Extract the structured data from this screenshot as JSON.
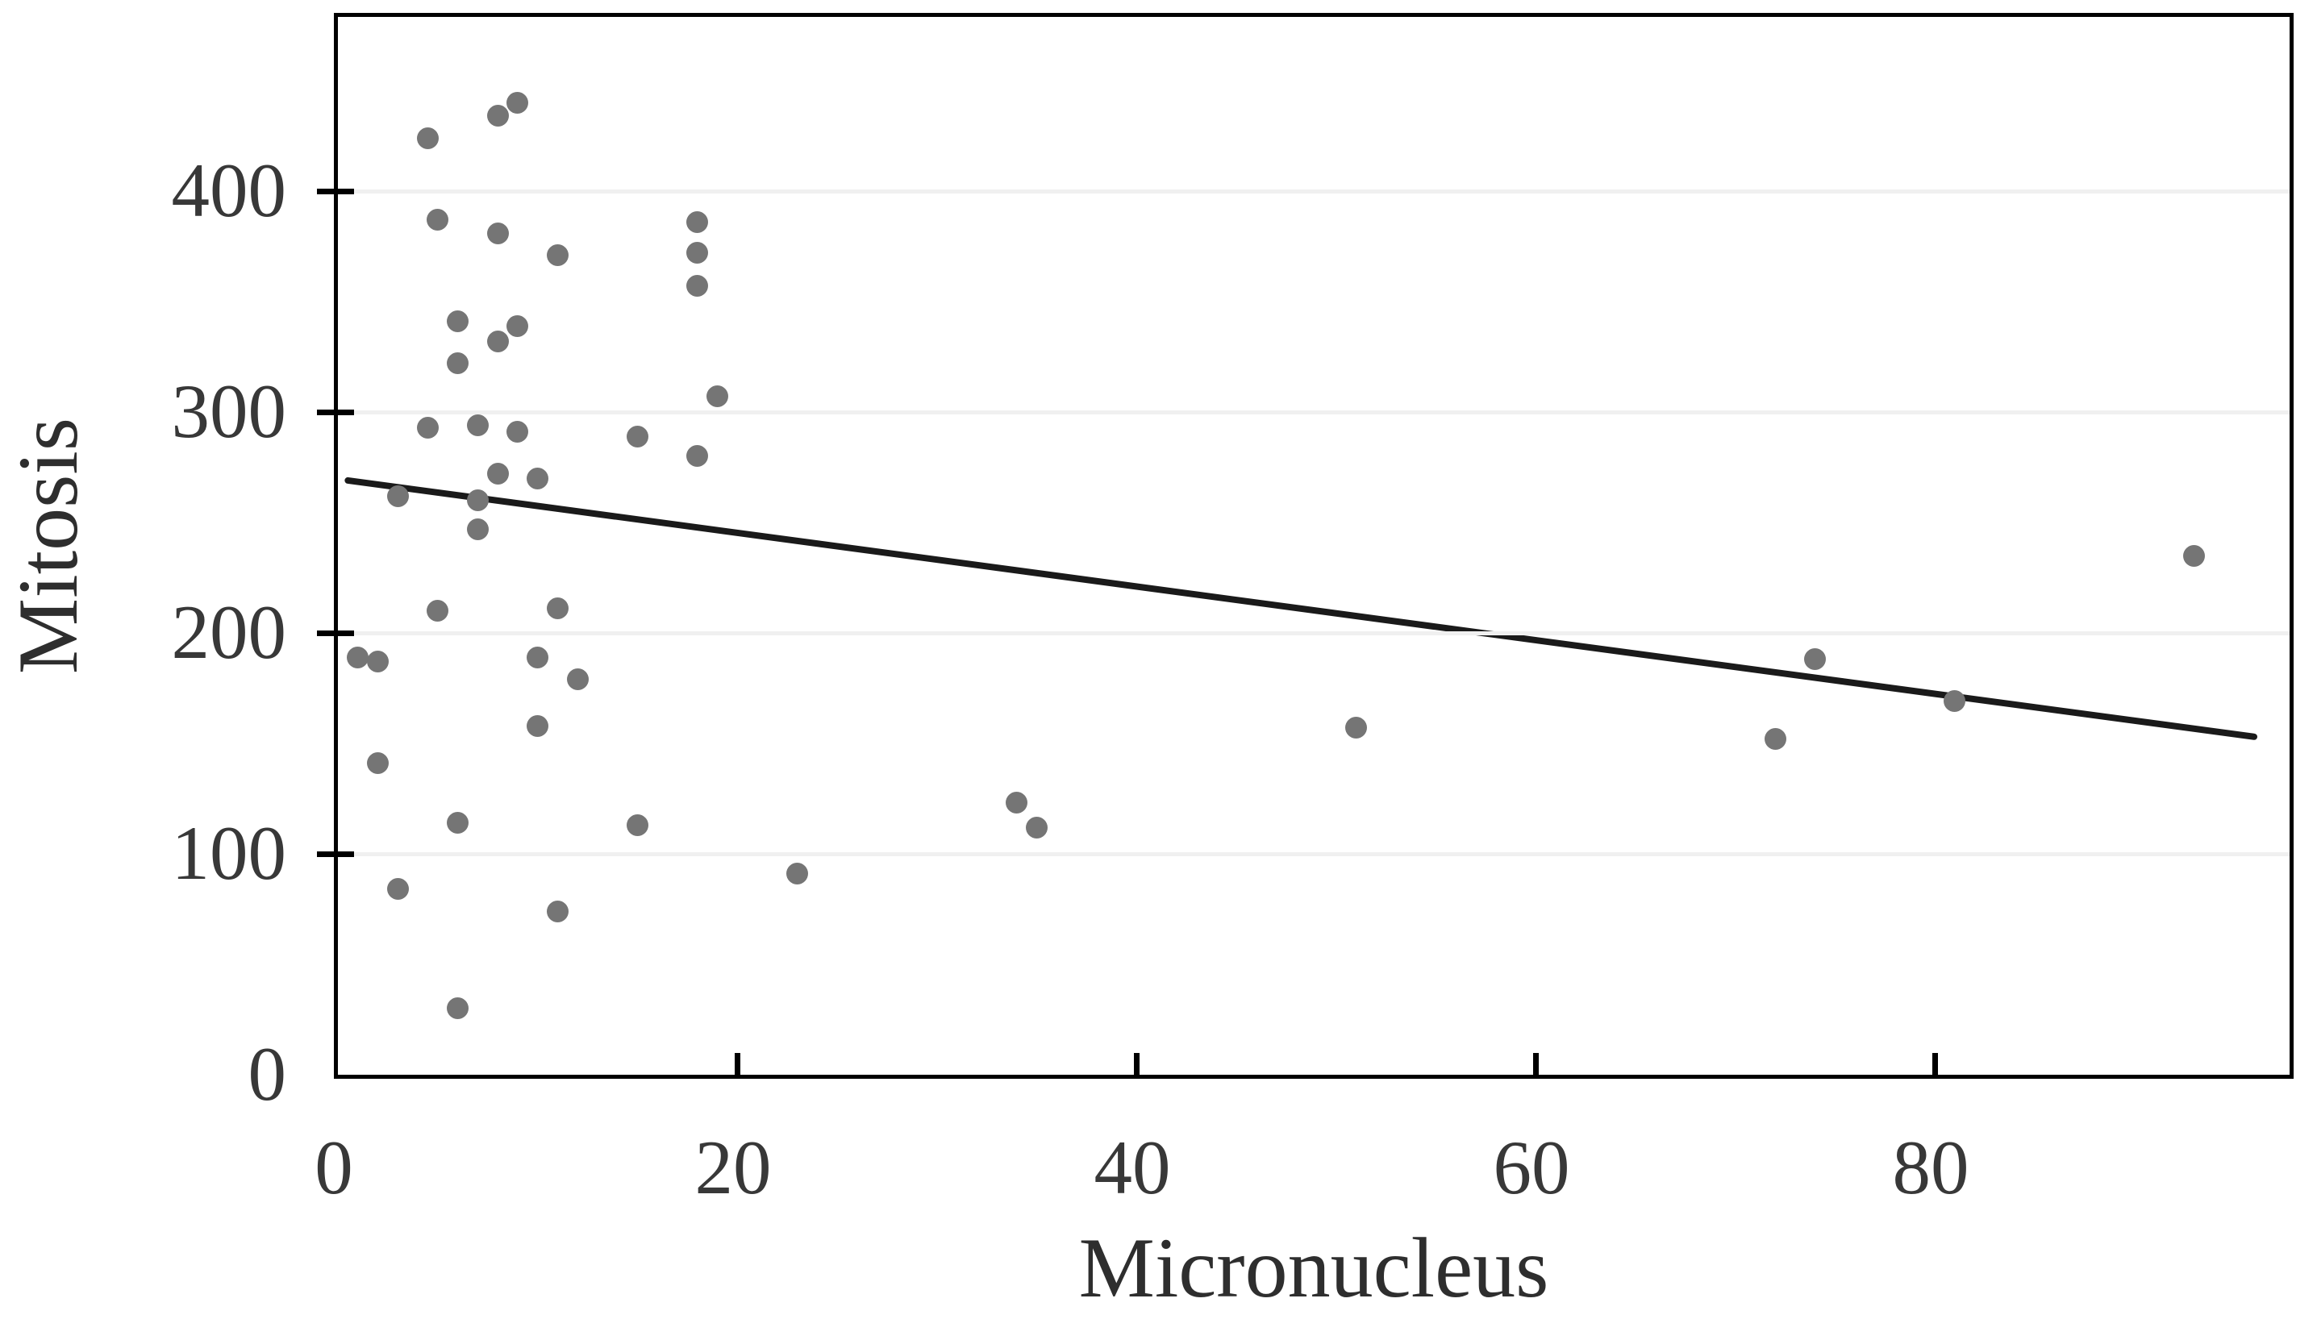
{
  "chart_data": {
    "type": "scatter",
    "title": "",
    "xlabel": "Micronucleus",
    "ylabel": "Mitosis",
    "x_ticks": [
      0,
      20,
      40,
      60,
      80
    ],
    "y_ticks": [
      0,
      100,
      200,
      300,
      400
    ],
    "xlim": [
      0,
      98
    ],
    "ylim": [
      0,
      481
    ],
    "grid": "horizontal-only",
    "legend": "none",
    "marker_color": "#757575",
    "trendline_color": "#1a1a1a",
    "axis_color": "#000000",
    "gridline_color": "#f0f0f0",
    "series": [
      {
        "name": "observations",
        "marker": "circle",
        "points": [
          [
            8,
            434
          ],
          [
            9,
            440
          ],
          [
            4.5,
            424
          ],
          [
            5,
            387
          ],
          [
            8,
            381
          ],
          [
            11,
            371
          ],
          [
            18,
            386
          ],
          [
            18,
            372
          ],
          [
            18,
            357
          ],
          [
            6,
            341
          ],
          [
            9,
            339
          ],
          [
            8,
            332
          ],
          [
            6,
            322
          ],
          [
            19,
            307
          ],
          [
            4.5,
            293
          ],
          [
            7,
            294
          ],
          [
            9,
            291
          ],
          [
            15,
            289
          ],
          [
            18,
            280
          ],
          [
            3,
            262
          ],
          [
            8,
            272
          ],
          [
            10,
            270
          ],
          [
            7,
            260
          ],
          [
            7,
            247
          ],
          [
            5,
            210
          ],
          [
            11,
            211
          ],
          [
            1,
            189
          ],
          [
            2,
            187
          ],
          [
            10,
            189
          ],
          [
            12,
            179
          ],
          [
            10,
            158
          ],
          [
            2,
            141
          ],
          [
            6,
            114
          ],
          [
            15,
            113
          ],
          [
            3,
            84
          ],
          [
            11,
            74
          ],
          [
            6,
            30
          ],
          [
            23,
            91
          ],
          [
            34,
            123
          ],
          [
            35,
            112
          ],
          [
            51,
            157
          ],
          [
            72,
            152
          ],
          [
            74,
            188
          ],
          [
            81,
            169
          ],
          [
            93,
            235
          ]
        ]
      }
    ],
    "trendline": {
      "type": "linear",
      "x_start": 0.5,
      "y_start": 269,
      "x_end": 96,
      "y_end": 153
    }
  }
}
